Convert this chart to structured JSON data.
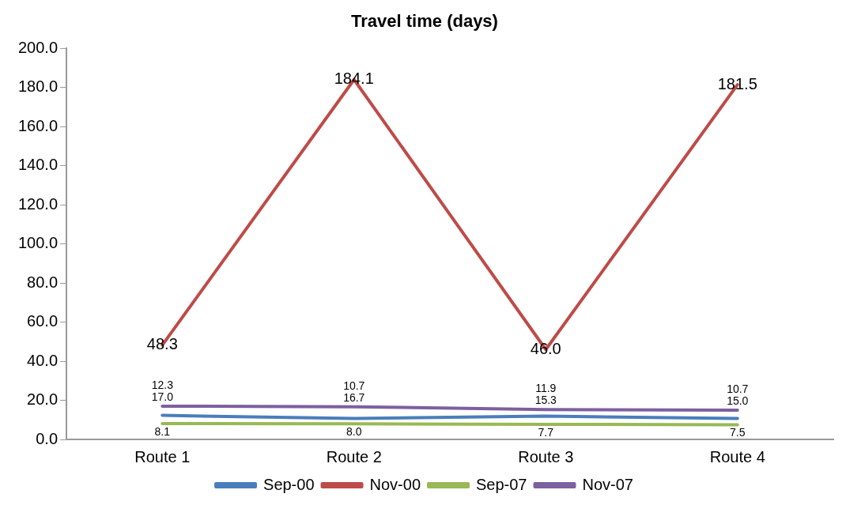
{
  "chart_data": {
    "type": "line",
    "title": "Travel time (days)",
    "categories": [
      "Route 1",
      "Route 2",
      "Route 3",
      "Route 4"
    ],
    "series": [
      {
        "name": "Sep-00",
        "color": "#4a7ebb",
        "values": [
          12.3,
          10.7,
          11.9,
          10.7
        ],
        "value_labels": [
          "12.3",
          "10.7",
          "11.9",
          "10.7"
        ]
      },
      {
        "name": "Nov-00",
        "color": "#be4b48",
        "values": [
          48.3,
          184.1,
          46.0,
          181.5
        ],
        "value_labels": [
          "48.3",
          "184.1",
          "46.0",
          "181.5"
        ]
      },
      {
        "name": "Sep-07",
        "color": "#98b954",
        "values": [
          8.1,
          8.0,
          7.7,
          7.5
        ],
        "value_labels": [
          "8.1",
          "8.0",
          "7.7",
          "7.5"
        ]
      },
      {
        "name": "Nov-07",
        "color": "#7d60a0",
        "values": [
          17.0,
          16.7,
          15.3,
          15.0
        ],
        "value_labels": [
          "17.0",
          "16.7",
          "15.3",
          "15.0"
        ]
      }
    ],
    "ylim": [
      0,
      200
    ],
    "yticks": [
      {
        "value": 0,
        "label": "0.0"
      },
      {
        "value": 20,
        "label": "20.0"
      },
      {
        "value": 40,
        "label": "40.0"
      },
      {
        "value": 60,
        "label": "60.0"
      },
      {
        "value": 80,
        "label": "80.0"
      },
      {
        "value": 100,
        "label": "100.0"
      },
      {
        "value": 120,
        "label": "120.0"
      },
      {
        "value": 140,
        "label": "140.0"
      },
      {
        "value": 160,
        "label": "160.0"
      },
      {
        "value": 180,
        "label": "180.0"
      },
      {
        "value": 200,
        "label": "200.0"
      }
    ],
    "grid": false,
    "legend": "bottom",
    "marker": "none",
    "line_style": "solid"
  }
}
